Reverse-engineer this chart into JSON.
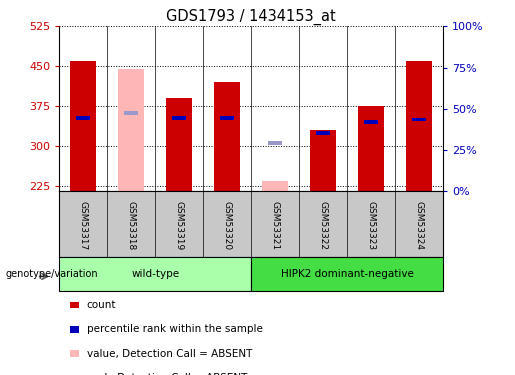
{
  "title": "GDS1793 / 1434153_at",
  "samples": [
    "GSM53317",
    "GSM53318",
    "GSM53319",
    "GSM53320",
    "GSM53321",
    "GSM53322",
    "GSM53323",
    "GSM53324"
  ],
  "count_values": [
    460,
    null,
    390,
    420,
    null,
    330,
    375,
    460
  ],
  "count_absent_values": [
    null,
    445,
    null,
    null,
    235,
    null,
    null,
    null
  ],
  "rank_values": [
    352,
    null,
    352,
    352,
    null,
    325,
    345,
    350
  ],
  "rank_absent_values": [
    null,
    362,
    null,
    null,
    305,
    null,
    null,
    null
  ],
  "y_min": 215,
  "y_max": 525,
  "y_ticks": [
    225,
    300,
    375,
    450,
    525
  ],
  "y2_ticks": [
    0,
    25,
    50,
    75,
    100
  ],
  "y2_labels": [
    "0%",
    "25%",
    "50%",
    "75%",
    "100%"
  ],
  "bar_width": 0.55,
  "rank_bar_width": 0.3,
  "rank_bar_height": 7,
  "count_color": "#CC0000",
  "count_absent_color": "#FFB6B6",
  "rank_color": "#0000BB",
  "rank_absent_color": "#9999CC",
  "groups": [
    {
      "label": "wild-type",
      "start": 0,
      "end": 3,
      "color": "#AAFFAA"
    },
    {
      "label": "HIPK2 dominant-negative",
      "start": 4,
      "end": 7,
      "color": "#44DD44"
    }
  ],
  "legend_items": [
    {
      "label": "count",
      "color": "#CC0000"
    },
    {
      "label": "percentile rank within the sample",
      "color": "#0000BB"
    },
    {
      "label": "value, Detection Call = ABSENT",
      "color": "#FFB6B6"
    },
    {
      "label": "rank, Detection Call = ABSENT",
      "color": "#9999CC"
    }
  ],
  "tick_color_left": "#CC0000",
  "tick_color_right": "#0000BB",
  "label_gray": "#C8C8C8"
}
